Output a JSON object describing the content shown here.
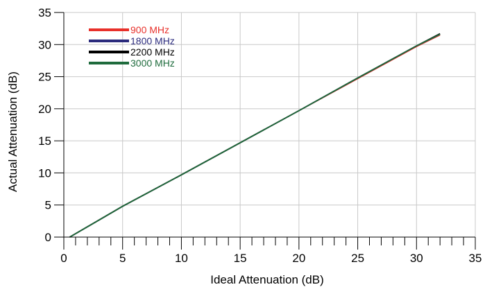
{
  "chart_data": {
    "type": "line",
    "title": "",
    "xlabel": "Ideal Attenuation (dB)",
    "ylabel": "Actual Attenuation (dB)",
    "xlim": [
      0,
      35
    ],
    "ylim": [
      0,
      35
    ],
    "xticks": [
      "0",
      "5",
      "10",
      "15",
      "20",
      "25",
      "30",
      "35"
    ],
    "yticks": [
      "0",
      "5",
      "10",
      "15",
      "20",
      "25",
      "30",
      "35"
    ],
    "grid": true,
    "legend_position": "top-left",
    "series": [
      {
        "name": "900 MHz",
        "color": "#e8302a",
        "x": [
          0.5,
          5,
          10,
          15,
          20,
          25,
          30,
          32
        ],
        "y": [
          0.0,
          4.8,
          9.7,
          14.7,
          19.7,
          24.7,
          29.7,
          31.5
        ]
      },
      {
        "name": "1800 MHz",
        "color": "#2a2a7c",
        "x": [
          0.5,
          5,
          10,
          15,
          20,
          25,
          30,
          32
        ],
        "y": [
          0.0,
          4.8,
          9.7,
          14.7,
          19.7,
          24.8,
          29.8,
          31.6
        ]
      },
      {
        "name": "2200 MHz",
        "color": "#000000",
        "x": [
          0.5,
          5,
          10,
          15,
          20,
          25,
          30,
          32
        ],
        "y": [
          0.0,
          4.8,
          9.7,
          14.7,
          19.7,
          24.8,
          29.8,
          31.7
        ]
      },
      {
        "name": "3000 MHz",
        "color": "#1e6b3c",
        "x": [
          0.5,
          5,
          10,
          15,
          20,
          25,
          30,
          32
        ],
        "y": [
          0.0,
          4.8,
          9.7,
          14.7,
          19.7,
          24.8,
          29.8,
          31.6
        ]
      }
    ]
  }
}
